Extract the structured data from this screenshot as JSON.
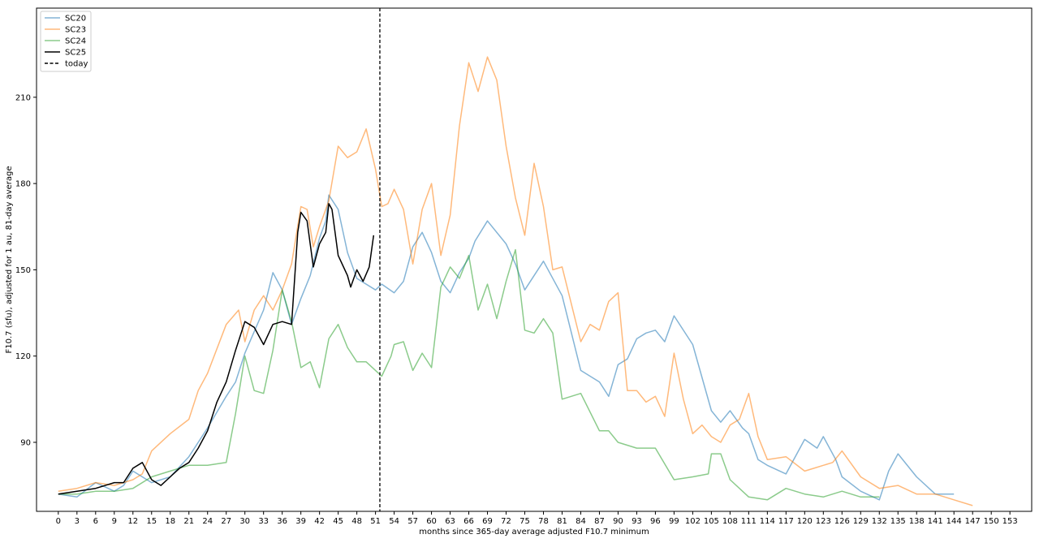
{
  "chart_data": {
    "type": "line",
    "xlabel": "months since 365-day average adjusted F10.7 minimum",
    "ylabel": "F10.7 (sfu), adjusted for 1 au, 81-day average",
    "xlim": [
      -3.5,
      156.5
    ],
    "ylim": [
      66,
      241
    ],
    "x_ticks": [
      0,
      3,
      6,
      9,
      12,
      15,
      18,
      21,
      24,
      27,
      30,
      33,
      36,
      39,
      42,
      45,
      48,
      51,
      54,
      57,
      60,
      63,
      66,
      69,
      72,
      75,
      78,
      81,
      84,
      87,
      90,
      93,
      96,
      99,
      102,
      105,
      108,
      111,
      114,
      117,
      120,
      123,
      126,
      129,
      132,
      135,
      138,
      141,
      144,
      147,
      150,
      153
    ],
    "y_ticks": [
      90,
      120,
      150,
      180,
      210
    ],
    "grid": false,
    "legend_position": "top-left",
    "today_x": 51.7,
    "today_label": "today",
    "series": [
      {
        "name": "SC20",
        "color": "#1f77b4",
        "alpha": 0.55,
        "width": 1.5,
        "x": [
          0,
          3,
          6,
          9,
          10.5,
          12,
          15,
          18,
          21,
          24,
          27,
          28.5,
          30,
          33,
          34.5,
          36,
          37.5,
          39,
          40.5,
          42,
          43,
          43.5,
          45,
          46.5,
          48,
          51,
          52,
          54,
          55.5,
          57,
          58.5,
          60,
          61.5,
          63,
          64.5,
          66,
          67,
          69,
          72,
          73.5,
          75,
          78,
          81,
          84,
          87,
          88.5,
          90,
          91.5,
          93,
          94.5,
          96,
          97.5,
          99,
          102,
          105,
          106.5,
          108,
          110,
          111,
          112.5,
          114,
          117,
          120,
          122,
          123,
          125,
          126,
          129,
          132,
          133.5,
          135,
          138,
          141,
          144
        ],
        "y": [
          72,
          71,
          76,
          73,
          75,
          80,
          76,
          78,
          85,
          95,
          106,
          111,
          121,
          136,
          149,
          143,
          131,
          140,
          148,
          161,
          167,
          176,
          171,
          156,
          147,
          143,
          145,
          142,
          146,
          158,
          163,
          156,
          146,
          142,
          149,
          154,
          160,
          167,
          159,
          152,
          143,
          153,
          141,
          115,
          111,
          106,
          117,
          119,
          126,
          128,
          129,
          125,
          134,
          124,
          101,
          97,
          101,
          95,
          93,
          84,
          82,
          79,
          91,
          88,
          92,
          84,
          78,
          73,
          70,
          80,
          86,
          78,
          72,
          72
        ]
      },
      {
        "name": "SC23",
        "color": "#ff7f0e",
        "alpha": 0.55,
        "width": 1.5,
        "x": [
          0,
          3,
          6,
          9,
          12,
          13.5,
          15,
          18,
          21,
          22.5,
          24,
          27,
          29,
          30,
          31.5,
          33,
          34.5,
          36,
          37.5,
          39,
          40,
          41,
          42,
          43.5,
          45,
          46.5,
          48,
          49.5,
          51,
          52,
          53,
          54,
          55.5,
          57,
          58.5,
          60,
          61.5,
          63,
          64.5,
          66,
          67.5,
          69,
          70.5,
          72,
          73.5,
          75,
          76.5,
          78,
          79.5,
          81,
          84,
          85.5,
          87,
          88.5,
          90,
          91.5,
          93,
          94.5,
          96,
          97.5,
          99,
          100.5,
          102,
          103.5,
          105,
          106.5,
          108,
          109.5,
          111,
          112.5,
          114,
          117,
          120,
          121.5,
          123,
          124.5,
          126,
          129,
          132,
          135,
          138,
          141,
          144,
          147
        ],
        "y": [
          73,
          74,
          76,
          75,
          77,
          79,
          87,
          93,
          98,
          108,
          114,
          131,
          136,
          125,
          136,
          141,
          136,
          143,
          152,
          172,
          171,
          158,
          165,
          174,
          193,
          189,
          191,
          199,
          185,
          172,
          173,
          178,
          171,
          152,
          171,
          180,
          155,
          169,
          200,
          222,
          212,
          224,
          216,
          193,
          175,
          162,
          187,
          172,
          150,
          151,
          125,
          131,
          129,
          139,
          142,
          108,
          108,
          104,
          106,
          99,
          121,
          105,
          93,
          96,
          92,
          90,
          96,
          98,
          107,
          92,
          84,
          85,
          80,
          81,
          82,
          83,
          87,
          78,
          74,
          75,
          72,
          72,
          70,
          68
        ]
      },
      {
        "name": "SC24",
        "color": "#2ca02c",
        "alpha": 0.55,
        "width": 1.5,
        "x": [
          0,
          3,
          6,
          9,
          12,
          15,
          18,
          21,
          24,
          27,
          28.5,
          30,
          31.5,
          33,
          34.5,
          36,
          37.5,
          39,
          40.5,
          42,
          43.5,
          45,
          46.5,
          48,
          49.5,
          51,
          52,
          53.5,
          54,
          55.5,
          57,
          58.5,
          60,
          61.5,
          63,
          64.5,
          66,
          67.5,
          69,
          70.5,
          72,
          73.5,
          75,
          76.5,
          78,
          79.5,
          81,
          84,
          87,
          88.5,
          90,
          93,
          96,
          99,
          102,
          104.5,
          105,
          106.5,
          108,
          111,
          114,
          117,
          120,
          123,
          126,
          129,
          132
        ],
        "y": [
          72,
          72,
          73,
          73,
          74,
          78,
          80,
          82,
          82,
          83,
          100,
          120,
          108,
          107,
          122,
          143,
          132,
          116,
          118,
          109,
          126,
          131,
          123,
          118,
          118,
          115,
          113,
          120,
          124,
          125,
          115,
          121,
          116,
          144,
          151,
          147,
          155,
          136,
          145,
          133,
          146,
          157,
          129,
          128,
          133,
          128,
          105,
          107,
          94,
          94,
          90,
          88,
          88,
          77,
          78,
          79,
          86,
          86,
          77,
          71,
          70,
          74,
          72,
          71,
          73,
          71,
          71
        ]
      },
      {
        "name": "SC25",
        "color": "#000000",
        "alpha": 1,
        "width": 1.5,
        "x": [
          0,
          3,
          6,
          9,
          10.5,
          12,
          13.5,
          15,
          16.5,
          18,
          19.5,
          21,
          22.5,
          24,
          25.5,
          27,
          28.5,
          30,
          31.5,
          33,
          34.5,
          36,
          37.5,
          38.5,
          39,
          40,
          41,
          42,
          43,
          43.5,
          44,
          45,
          46.5,
          47,
          48,
          49,
          50,
          50.7
        ],
        "y": [
          72,
          73,
          74,
          76,
          76,
          81,
          83,
          77,
          75,
          78,
          81,
          83,
          88,
          94,
          104,
          111,
          122,
          132,
          130,
          124,
          131,
          132,
          131,
          163,
          170,
          167,
          151,
          159,
          163,
          173,
          171,
          155,
          148,
          144,
          150,
          146,
          151,
          162
        ]
      }
    ]
  }
}
